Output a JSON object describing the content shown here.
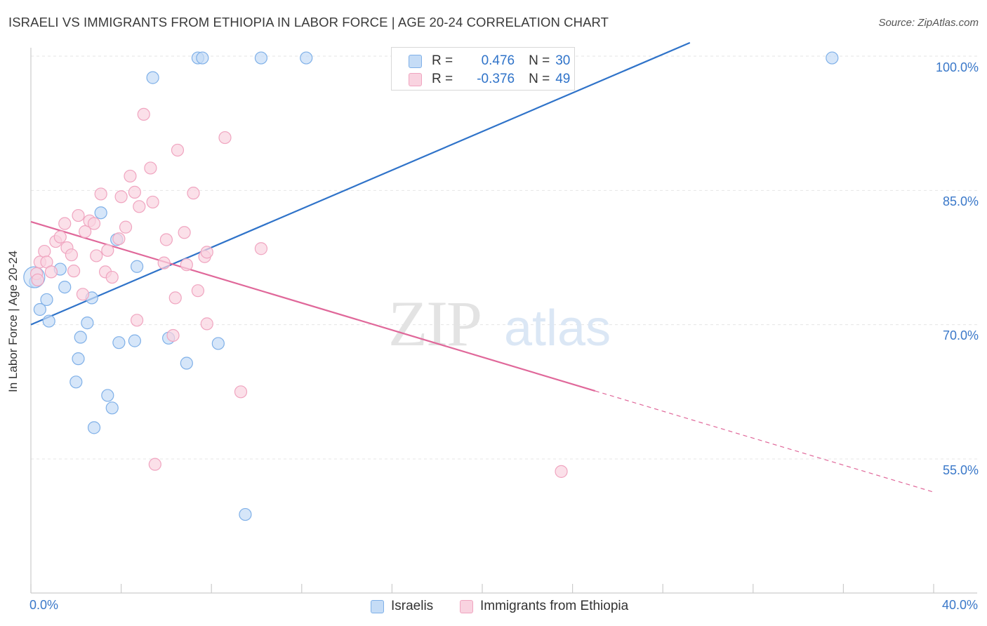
{
  "title": "ISRAELI VS IMMIGRANTS FROM ETHIOPIA IN LABOR FORCE | AGE 20-24 CORRELATION CHART",
  "source": "Source: ZipAtlas.com",
  "watermark": {
    "zip": "ZIP",
    "atlas": "atlas"
  },
  "chart_data": {
    "type": "scatter",
    "title": "ISRAELI VS IMMIGRANTS FROM ETHIOPIA IN LABOR FORCE | AGE 20-24 CORRELATION CHART",
    "xlabel": "",
    "ylabel": "In Labor Force | Age 20-24",
    "xlim": [
      0,
      40
    ],
    "ylim": [
      41.5,
      101.5
    ],
    "x_tick_labels": {
      "left": "0.0%",
      "right": "40.0%"
    },
    "y_ticks": [
      {
        "value": 100,
        "label": "100.0%"
      },
      {
        "value": 85,
        "label": "85.0%"
      },
      {
        "value": 70,
        "label": "70.0%"
      },
      {
        "value": 55,
        "label": "55.0%"
      }
    ],
    "grid": true,
    "legend_top": [
      {
        "r_label": "R =",
        "r_value": "0.476",
        "n_label": "N =",
        "n_value": "30"
      },
      {
        "r_label": "R =",
        "r_value": "-0.376",
        "n_label": "N =",
        "n_value": "49"
      }
    ],
    "series": [
      {
        "name": "Israelis",
        "color": "#7fb0e8",
        "fill": "#c5dcf6",
        "line_color": "#2f73c9",
        "trend": {
          "x0": 0,
          "y0": 70.0,
          "x1": 29.2,
          "y1": 101.5,
          "dashed_to": null
        },
        "points": [
          [
            0.2,
            74.8
          ],
          [
            0.4,
            71.7
          ],
          [
            0.7,
            72.8
          ],
          [
            0.8,
            70.4
          ],
          [
            1.3,
            76.2
          ],
          [
            1.5,
            74.2
          ],
          [
            2.1,
            66.2
          ],
          [
            2.0,
            63.6
          ],
          [
            2.2,
            68.6
          ],
          [
            2.5,
            70.2
          ],
          [
            2.7,
            73.0
          ],
          [
            2.8,
            58.5
          ],
          [
            3.1,
            82.5
          ],
          [
            3.4,
            62.1
          ],
          [
            3.6,
            60.7
          ],
          [
            3.8,
            79.5
          ],
          [
            3.9,
            68.0
          ],
          [
            4.6,
            68.2
          ],
          [
            4.7,
            76.5
          ],
          [
            5.4,
            97.6
          ],
          [
            6.1,
            68.5
          ],
          [
            6.9,
            65.7
          ],
          [
            7.4,
            99.8
          ],
          [
            7.6,
            99.8
          ],
          [
            8.3,
            67.9
          ],
          [
            9.5,
            48.8
          ],
          [
            10.2,
            99.8
          ],
          [
            12.2,
            99.8
          ],
          [
            35.5,
            99.8
          ],
          [
            0.15,
            75.3
          ]
        ]
      },
      {
        "name": "Immigrants from Ethiopia",
        "color": "#f0a5c0",
        "fill": "#f9d3e0",
        "line_color": "#e0689a",
        "trend": {
          "x0": 0,
          "y0": 81.5,
          "x1": 25.0,
          "y1": 62.6,
          "dashed_to": {
            "x": 40.0,
            "y": 51.3
          }
        },
        "points": [
          [
            0.25,
            75.7
          ],
          [
            0.4,
            77.0
          ],
          [
            0.6,
            78.2
          ],
          [
            0.7,
            77.0
          ],
          [
            0.9,
            75.9
          ],
          [
            1.1,
            79.3
          ],
          [
            1.3,
            79.8
          ],
          [
            1.5,
            81.3
          ],
          [
            1.6,
            78.6
          ],
          [
            1.8,
            77.8
          ],
          [
            1.9,
            76.0
          ],
          [
            2.1,
            82.2
          ],
          [
            2.3,
            73.4
          ],
          [
            2.4,
            80.4
          ],
          [
            2.6,
            81.6
          ],
          [
            2.8,
            81.3
          ],
          [
            2.9,
            77.7
          ],
          [
            3.1,
            84.6
          ],
          [
            3.3,
            75.9
          ],
          [
            3.4,
            78.3
          ],
          [
            3.6,
            75.3
          ],
          [
            3.9,
            79.6
          ],
          [
            4.0,
            84.3
          ],
          [
            4.2,
            80.9
          ],
          [
            4.4,
            86.6
          ],
          [
            4.6,
            84.8
          ],
          [
            4.7,
            70.5
          ],
          [
            4.8,
            83.2
          ],
          [
            5.0,
            93.5
          ],
          [
            5.3,
            87.5
          ],
          [
            5.4,
            83.7
          ],
          [
            5.5,
            54.4
          ],
          [
            5.9,
            76.9
          ],
          [
            6.0,
            79.5
          ],
          [
            6.3,
            68.8
          ],
          [
            6.4,
            73.0
          ],
          [
            6.5,
            89.5
          ],
          [
            6.8,
            80.3
          ],
          [
            6.9,
            76.7
          ],
          [
            7.2,
            84.7
          ],
          [
            7.4,
            73.8
          ],
          [
            7.7,
            77.6
          ],
          [
            7.8,
            78.1
          ],
          [
            7.8,
            70.1
          ],
          [
            8.6,
            90.9
          ],
          [
            9.3,
            62.5
          ],
          [
            10.2,
            78.5
          ],
          [
            23.5,
            53.6
          ],
          [
            0.3,
            75.0
          ]
        ]
      }
    ]
  }
}
